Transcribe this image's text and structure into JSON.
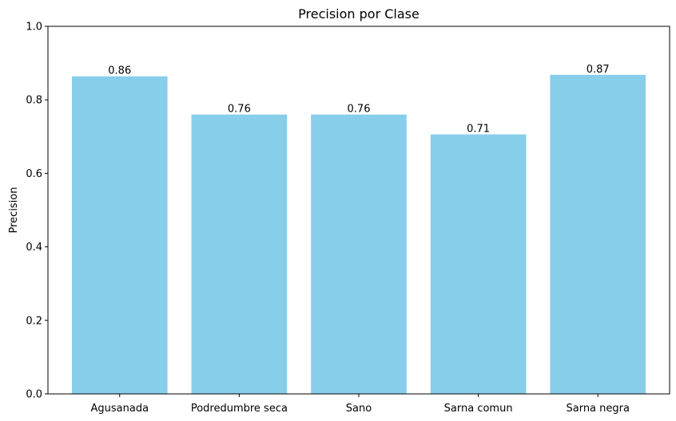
{
  "chart_data": {
    "type": "bar",
    "title": "Precision por Clase",
    "xlabel": "",
    "ylabel": "Precision",
    "categories": [
      "Agusanada",
      "Podredumbre seca",
      "Sano",
      "Sarna comun",
      "Sarna negra"
    ],
    "values": [
      0.864,
      0.76,
      0.76,
      0.706,
      0.868
    ],
    "data_labels": [
      "0.86",
      "0.76",
      "0.76",
      "0.71",
      "0.87"
    ],
    "ylim": [
      0,
      1.0
    ],
    "yticks": [
      0.0,
      0.2,
      0.4,
      0.6,
      0.8,
      1.0
    ],
    "ytick_labels": [
      "0.0",
      "0.2",
      "0.4",
      "0.6",
      "0.8",
      "1.0"
    ],
    "bar_color": "#87ceeb",
    "grid": false,
    "legend": "none"
  }
}
